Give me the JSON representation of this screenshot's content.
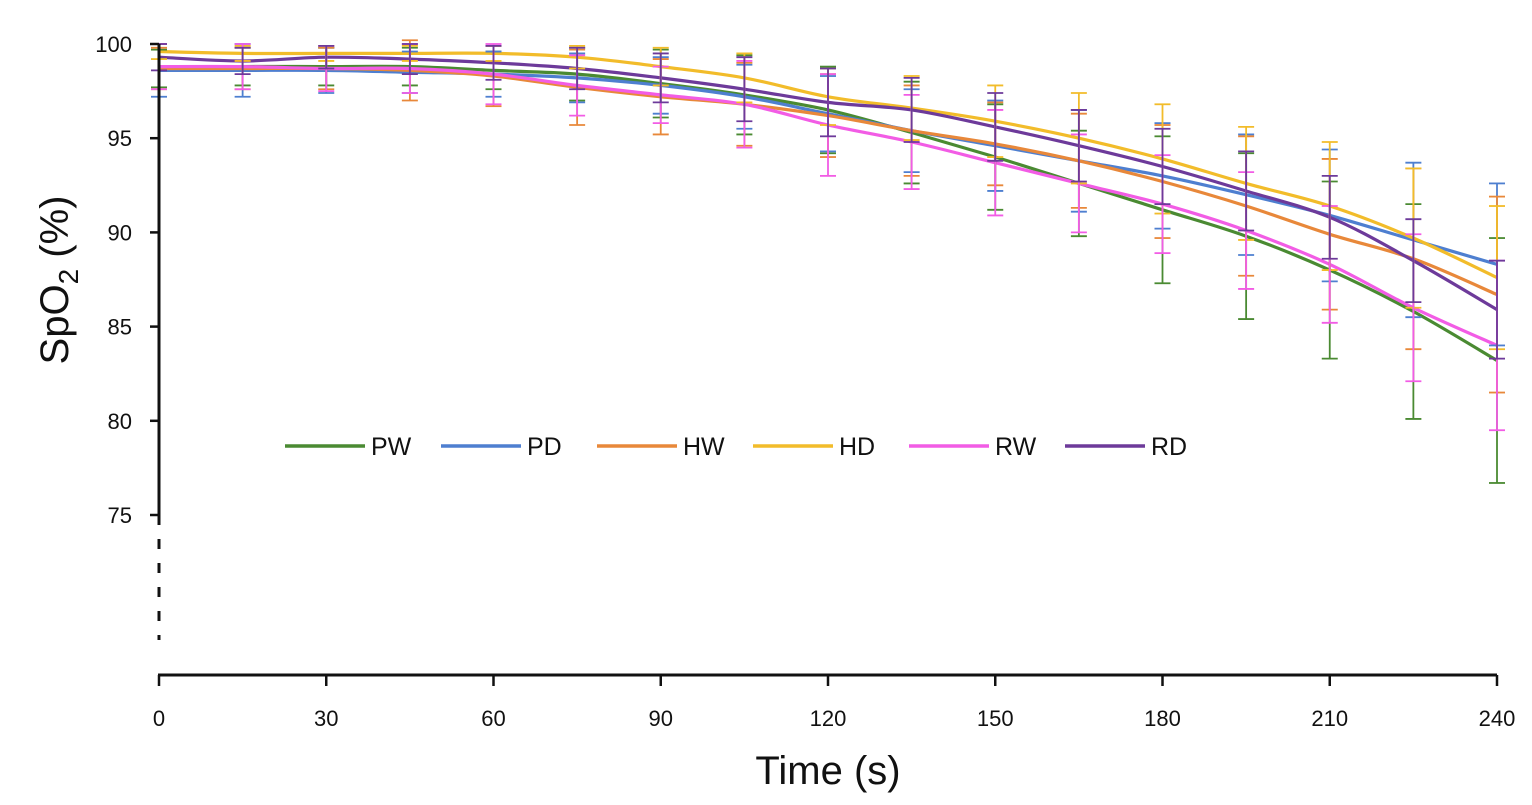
{
  "chart_data": {
    "type": "line",
    "xlabel": "Time (s)",
    "ylabel_main": "SpO",
    "ylabel_sub": "2",
    "ylabel_tail": " (%)",
    "xlim": [
      0,
      240
    ],
    "ylim": [
      75,
      100
    ],
    "x_ticks": [
      0,
      30,
      60,
      90,
      120,
      150,
      180,
      210,
      240
    ],
    "y_ticks": [
      75,
      80,
      85,
      90,
      95,
      100
    ],
    "grid": false,
    "legend_position": "center",
    "x": [
      0,
      15,
      30,
      45,
      60,
      75,
      90,
      105,
      120,
      135,
      150,
      165,
      180,
      195,
      210,
      225,
      240
    ],
    "series": [
      {
        "name": "PW",
        "color": "#4a8a32",
        "values": [
          98.7,
          98.8,
          98.8,
          98.8,
          98.6,
          98.4,
          97.9,
          97.3,
          96.5,
          95.3,
          94.0,
          92.6,
          91.2,
          89.8,
          88.0,
          85.8,
          83.2
        ],
        "errors": [
          1.0,
          1.0,
          1.0,
          1.0,
          1.0,
          1.4,
          1.8,
          2.1,
          2.3,
          2.7,
          2.8,
          2.8,
          3.9,
          4.4,
          4.7,
          5.7,
          6.5
        ]
      },
      {
        "name": "PD",
        "color": "#4e7fd0",
        "values": [
          98.6,
          98.6,
          98.6,
          98.5,
          98.4,
          98.2,
          97.8,
          97.2,
          96.3,
          95.4,
          94.6,
          93.8,
          93.0,
          92.0,
          90.9,
          89.6,
          88.3
        ],
        "errors": [
          1.4,
          1.4,
          1.2,
          1.1,
          1.2,
          1.3,
          1.5,
          1.7,
          2.0,
          2.2,
          2.4,
          2.7,
          2.8,
          3.2,
          3.5,
          4.1,
          4.3
        ]
      },
      {
        "name": "HW",
        "color": "#e8883a",
        "values": [
          98.7,
          98.7,
          98.7,
          98.6,
          98.3,
          97.7,
          97.2,
          96.8,
          96.2,
          95.4,
          94.7,
          93.8,
          92.7,
          91.4,
          89.9,
          88.6,
          86.7
        ],
        "errors": [
          1.1,
          1.1,
          1.1,
          1.6,
          1.6,
          2.0,
          2.0,
          2.2,
          2.2,
          2.4,
          2.2,
          2.5,
          3.0,
          3.7,
          4.0,
          4.8,
          5.2
        ]
      },
      {
        "name": "HD",
        "color": "#f2bc2a",
        "values": [
          99.6,
          99.5,
          99.5,
          99.5,
          99.5,
          99.3,
          98.8,
          98.2,
          97.2,
          96.6,
          95.9,
          95.0,
          93.9,
          92.6,
          91.4,
          89.7,
          87.6
        ],
        "errors": [
          0.4,
          0.4,
          0.4,
          0.4,
          0.4,
          0.6,
          1.0,
          1.3,
          1.5,
          1.7,
          1.9,
          2.4,
          2.9,
          3.0,
          3.4,
          3.7,
          3.8
        ]
      },
      {
        "name": "RW",
        "color": "#f25ce5",
        "values": [
          98.8,
          98.8,
          98.7,
          98.7,
          98.4,
          97.8,
          97.3,
          96.8,
          95.7,
          94.8,
          93.7,
          92.6,
          91.5,
          90.1,
          88.3,
          86.0,
          84.0
        ],
        "errors": [
          1.2,
          1.2,
          1.2,
          1.3,
          1.6,
          1.6,
          1.5,
          2.3,
          2.7,
          2.5,
          2.8,
          2.6,
          2.6,
          3.1,
          3.1,
          3.9,
          4.5
        ]
      },
      {
        "name": "RD",
        "color": "#6d3a9a",
        "values": [
          99.3,
          99.1,
          99.3,
          99.2,
          99.0,
          98.7,
          98.2,
          97.6,
          96.9,
          96.5,
          95.6,
          94.6,
          93.5,
          92.2,
          90.8,
          88.5,
          85.9
        ],
        "errors": [
          0.7,
          0.7,
          0.6,
          0.8,
          0.9,
          1.1,
          1.3,
          1.7,
          1.8,
          1.7,
          1.8,
          1.9,
          2.0,
          2.1,
          2.2,
          2.2,
          2.6
        ]
      }
    ]
  }
}
